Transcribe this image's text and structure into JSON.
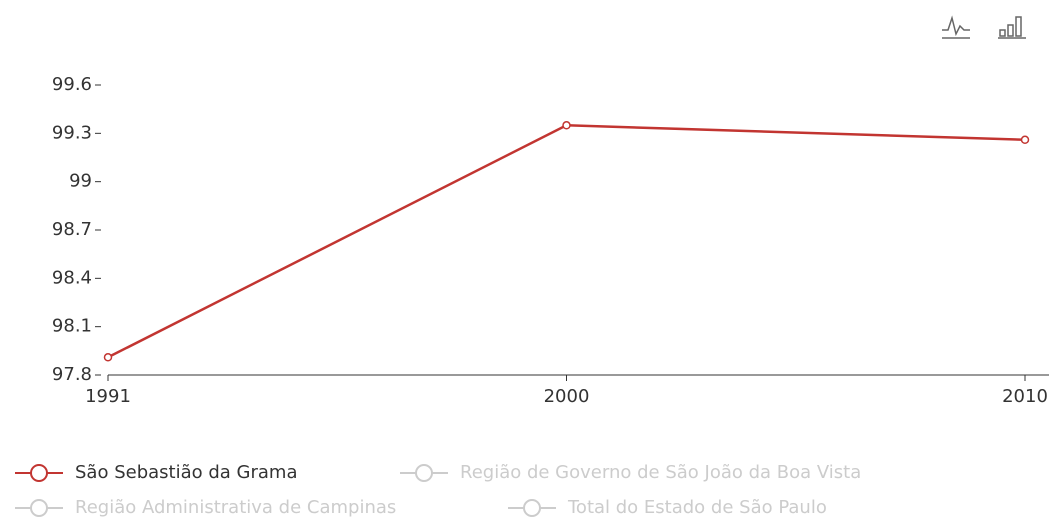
{
  "chart_data": {
    "type": "line",
    "categories": [
      "1991",
      "2000",
      "2010"
    ],
    "series": [
      {
        "name": "São Sebastião da Grama",
        "color": "#c23531",
        "values": [
          97.91,
          99.35,
          99.26
        ]
      },
      {
        "name": "Região de Governo de São João da Boa Vista",
        "color": "#cccccc",
        "values": [
          null,
          null,
          null
        ]
      },
      {
        "name": "Região Administrativa de Campinas",
        "color": "#cccccc",
        "values": [
          null,
          null,
          null
        ]
      },
      {
        "name": "Total do Estado de São Paulo",
        "color": "#cccccc",
        "values": [
          null,
          null,
          null
        ]
      }
    ],
    "ylim": [
      97.8,
      99.6
    ],
    "yticks": [
      97.8,
      98.1,
      98.4,
      98.7,
      99,
      99.3,
      99.6
    ],
    "grid": false
  }
}
